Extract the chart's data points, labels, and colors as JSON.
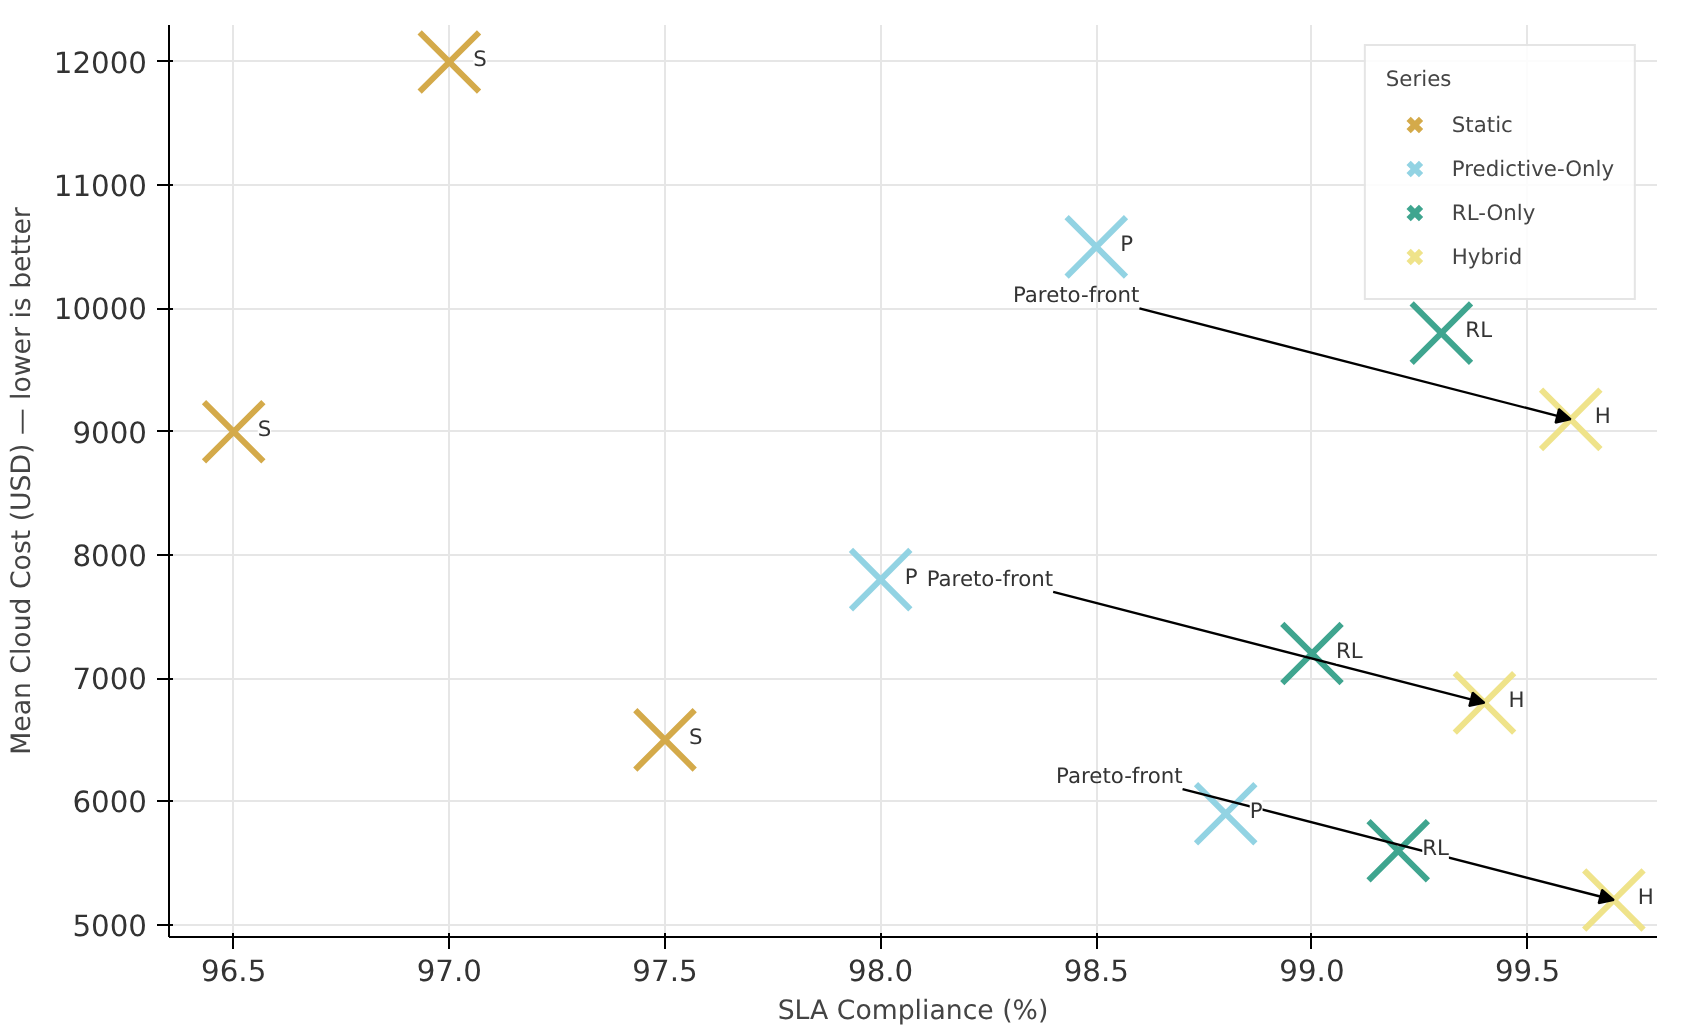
{
  "chart_data": {
    "type": "scatter",
    "xlabel": "SLA Compliance (%)",
    "ylabel": "Mean Cloud Cost (USD) — lower is better",
    "legend_title": "Series",
    "legend": "top right",
    "grid": true,
    "marker": "cross",
    "xlim": [
      96.35,
      99.8
    ],
    "ylim": [
      4900,
      12300
    ],
    "xticks": [
      96.5,
      {
        "value": 97,
        "label": "97.0"
      },
      97.5,
      {
        "value": 98,
        "label": "98.0"
      },
      98.5,
      {
        "value": 99,
        "label": "99.0"
      },
      99.5
    ],
    "yticks": [
      5000,
      6000,
      7000,
      8000,
      9000,
      10000,
      11000,
      12000
    ],
    "series": [
      {
        "name": "Static",
        "color": "#d4aa4a",
        "x": [
          97.0,
          96.5,
          97.5
        ],
        "values": [
          12000,
          9000,
          6500
        ],
        "value_labels": [
          "S",
          "S",
          "S"
        ]
      },
      {
        "name": "Predictive-Only",
        "color": "#92d3e3",
        "x": [
          98.5,
          98.0,
          98.8
        ],
        "values": [
          10500,
          7800,
          5900
        ],
        "value_labels": [
          "P",
          "P",
          "P"
        ]
      },
      {
        "name": "RL-Only",
        "color": "#3fa58f",
        "x": [
          99.3,
          99.0,
          99.2
        ],
        "values": [
          9800,
          7200,
          5600
        ],
        "value_labels": [
          "RL",
          "RL",
          "RL"
        ]
      },
      {
        "name": "Hybrid",
        "color": "#efe38a",
        "x": [
          99.6,
          99.4,
          99.7
        ],
        "values": [
          9100,
          6800,
          5200
        ],
        "value_labels": [
          "H",
          "H",
          "H"
        ]
      }
    ],
    "annotations": [
      {
        "text": "Pareto-front",
        "x": 99.6,
        "y": 9100
      },
      {
        "text": "Pareto-front",
        "x": 99.4,
        "y": 6800
      },
      {
        "text": "Pareto-front",
        "x": 99.7,
        "y": 5200
      }
    ]
  }
}
